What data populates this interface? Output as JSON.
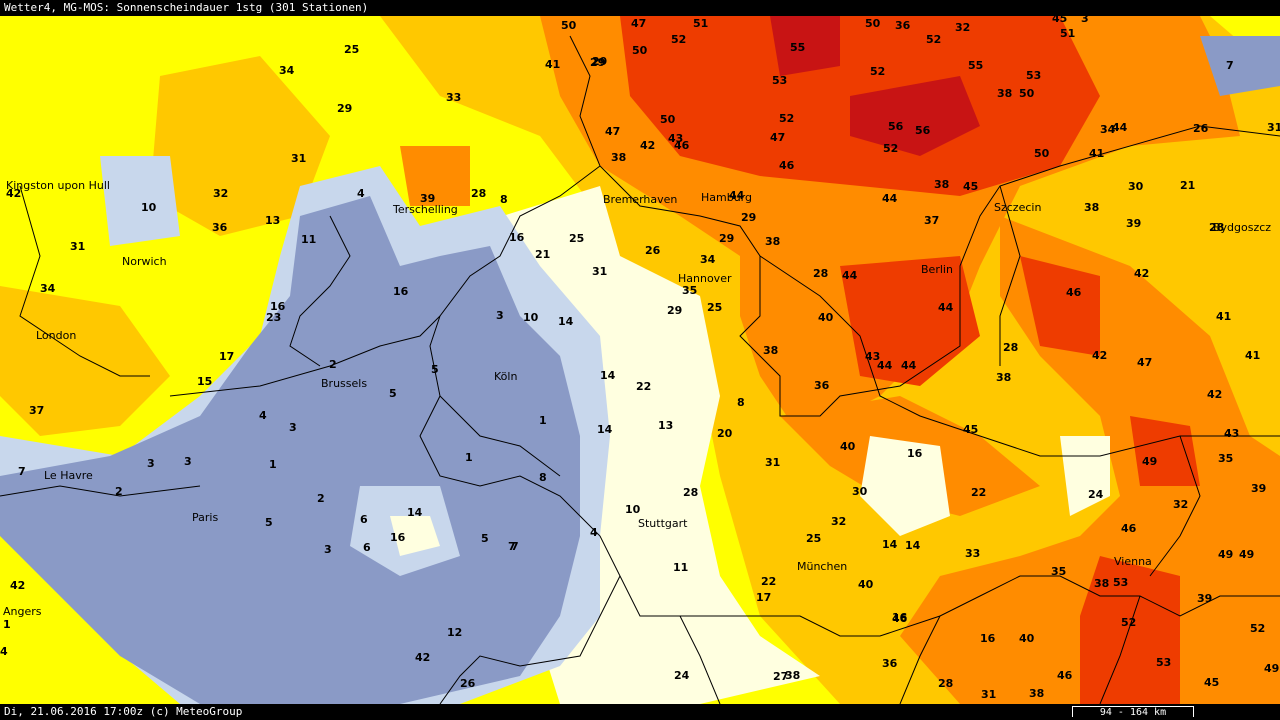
{
  "header": {
    "title": "Wetter4, MG-MOS: Sonnenscheindauer 1stg (301 Stationen)"
  },
  "footer": {
    "timestamp": "Di, 21.06.2016 17:00z (c) MeteoGroup",
    "scale_label": "94 - 164 km"
  },
  "colors": {
    "very_low": "#8a9ac6",
    "low": "#c8d7ec",
    "mid_low": "#ffffe0",
    "mid": "#ffff00",
    "mid_high": "#ffc800",
    "high": "#ff8c00",
    "very_high": "#ee3c00",
    "max": "#c81414",
    "border": "#000000"
  },
  "cities": [
    {
      "name": "Kingston upon Hull",
      "label": "Kingston upon Hull"
    },
    {
      "name": "Norwich",
      "label": "Norwich"
    },
    {
      "name": "London",
      "label": "London"
    },
    {
      "name": "Terschelling",
      "label": "Terschelling"
    },
    {
      "name": "Bremerhaven",
      "label": "Bremerhaven"
    },
    {
      "name": "Hamburg",
      "label": "Hamburg"
    },
    {
      "name": "Szczecin",
      "label": "Szczecin"
    },
    {
      "name": "Bydgoszcz",
      "label": "Bydgoszcz"
    },
    {
      "name": "Hannover",
      "label": "Hannover"
    },
    {
      "name": "Berlin",
      "label": "Berlin"
    },
    {
      "name": "Brussels",
      "label": "Brussels"
    },
    {
      "name": "Köln",
      "label": "Köln"
    },
    {
      "name": "Le Havre",
      "label": "Le Havre"
    },
    {
      "name": "Paris",
      "label": "Paris"
    },
    {
      "name": "Stuttgart",
      "label": "Stuttgart"
    },
    {
      "name": "München",
      "label": "München"
    },
    {
      "name": "Vienna",
      "label": "Vienna"
    },
    {
      "name": "Angers",
      "label": "Angers"
    }
  ],
  "values": [
    "50",
    "47",
    "51",
    "50",
    "36",
    "52",
    "32",
    "45",
    "3",
    "51",
    "25",
    "34",
    "41",
    "29",
    "52",
    "55",
    "50",
    "52",
    "29",
    "33",
    "7",
    "29",
    "50",
    "53",
    "55",
    "53",
    "38",
    "50",
    "26",
    "31",
    "47",
    "42",
    "43",
    "46",
    "52",
    "56",
    "56",
    "34",
    "44",
    "31",
    "38",
    "47",
    "50",
    "52",
    "46",
    "41",
    "42",
    "38",
    "45",
    "30",
    "21",
    "32",
    "10",
    "36",
    "13",
    "39",
    "28",
    "8",
    "44",
    "29",
    "44",
    "37",
    "38",
    "39",
    "28",
    "38",
    "11",
    "4",
    "16",
    "25",
    "21",
    "29",
    "26",
    "34",
    "28",
    "44",
    "42",
    "31",
    "34",
    "31",
    "16",
    "16",
    "35",
    "29",
    "25",
    "40",
    "46",
    "44",
    "41",
    "23",
    "3",
    "10",
    "14",
    "38",
    "43",
    "44",
    "44",
    "28",
    "42",
    "47",
    "41",
    "17",
    "15",
    "2",
    "5",
    "5",
    "14",
    "22",
    "36",
    "38",
    "42",
    "37",
    "4",
    "3",
    "1",
    "14",
    "13",
    "8",
    "40",
    "45",
    "16",
    "49",
    "43",
    "35",
    "39",
    "7",
    "3",
    "3",
    "1",
    "1",
    "6",
    "14",
    "7",
    "8",
    "20",
    "28",
    "31",
    "30",
    "22",
    "24",
    "32",
    "46",
    "49",
    "49",
    "2",
    "2",
    "5",
    "3",
    "6",
    "16",
    "5",
    "7",
    "4",
    "10",
    "32",
    "25",
    "14",
    "14",
    "33",
    "35",
    "38",
    "53",
    "52",
    "39",
    "52",
    "12",
    "11",
    "22",
    "17",
    "40",
    "46",
    "16",
    "16",
    "40",
    "46",
    "53",
    "45",
    "49",
    "42",
    "26",
    "24",
    "27",
    "38",
    "36",
    "28",
    "31",
    "38",
    "42",
    "1",
    "4",
    "10"
  ]
}
